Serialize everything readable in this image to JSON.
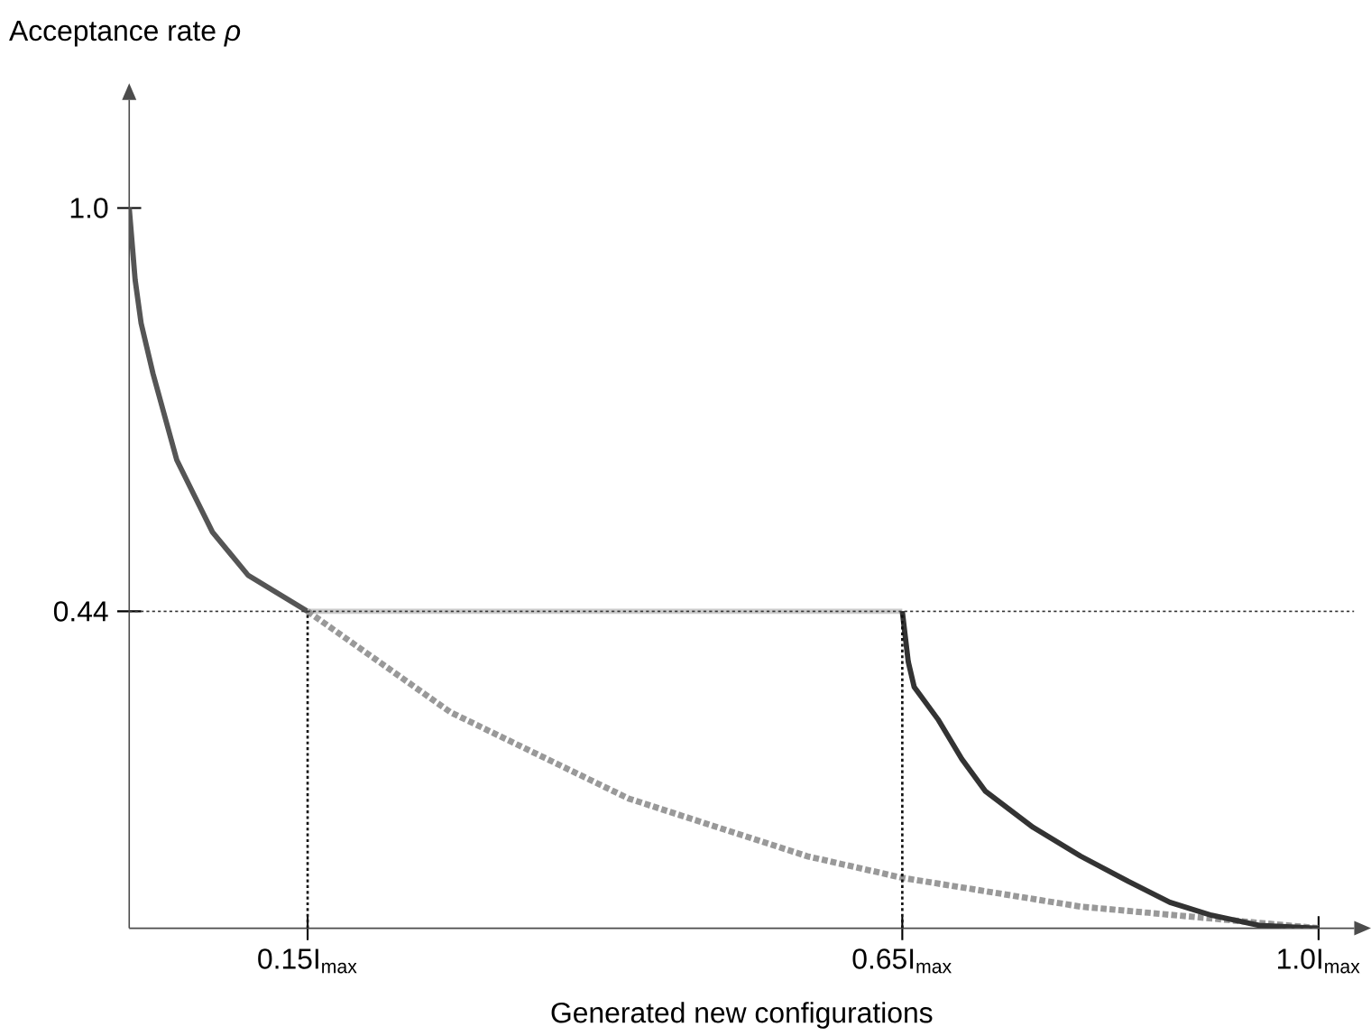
{
  "chart_data": {
    "type": "line",
    "xlabel": "Generated new configurations",
    "ylabel": "Acceptance rate *ρ*",
    "xlim": [
      0,
      1.03
    ],
    "ylim": [
      0,
      1.15
    ],
    "xticks": [
      {
        "value": 0.15,
        "label": "0.15I$_{max}$"
      },
      {
        "value": 0.65,
        "label": "0.65I$_{max}$"
      },
      {
        "value": 1.0,
        "label": "1.0I$_{max}$"
      }
    ],
    "yticks": [
      {
        "value": 0.44,
        "label": "0.44"
      },
      {
        "value": 1,
        "label": "1.0"
      }
    ],
    "grid": false,
    "marker": "none",
    "ref_lines": [
      {
        "axis": "y",
        "value": 0.44,
        "line_style": "dotted",
        "color": "#333333"
      }
    ],
    "series": [
      {
        "color": "#555555",
        "line_style": "solid",
        "x": [
          0,
          0.005,
          0.01,
          0.02,
          0.04,
          0.055,
          0.07,
          0.085,
          0.1,
          0.125,
          0.15
        ],
        "values": [
          1.0,
          0.9,
          0.84,
          0.77,
          0.65,
          0.6,
          0.55,
          0.52,
          0.49,
          0.465,
          0.44
        ]
      },
      {
        "color": "#cccccc",
        "line_style": "solid",
        "x": [
          0.15,
          0.65
        ],
        "values": [
          0.44,
          0.44
        ]
      },
      {
        "color": "#999999",
        "line_style": "dashed",
        "x": [
          0.15,
          0.27,
          0.42,
          0.57,
          0.65,
          0.8,
          1.0
        ],
        "values": [
          0.44,
          0.3,
          0.18,
          0.1,
          0.07,
          0.03,
          0.0
        ]
      },
      {
        "color": "#333333",
        "line_style": "solid",
        "x": [
          0.65,
          0.655,
          0.66,
          0.68,
          0.7,
          0.72,
          0.76,
          0.8,
          0.84,
          0.875,
          0.91,
          0.95,
          1.0
        ],
        "values": [
          0.44,
          0.37,
          0.335,
          0.29,
          0.235,
          0.19,
          0.14,
          0.1,
          0.065,
          0.036,
          0.018,
          0.004,
          0.0
        ]
      },
      {
        "color": "#111111",
        "line_style": "dotted",
        "x": [
          0.15,
          0.15
        ],
        "values": [
          0,
          0.44
        ]
      },
      {
        "color": "#111111",
        "line_style": "dotted",
        "x": [
          0.65,
          0.65
        ],
        "values": [
          0,
          0.44
        ]
      }
    ]
  }
}
